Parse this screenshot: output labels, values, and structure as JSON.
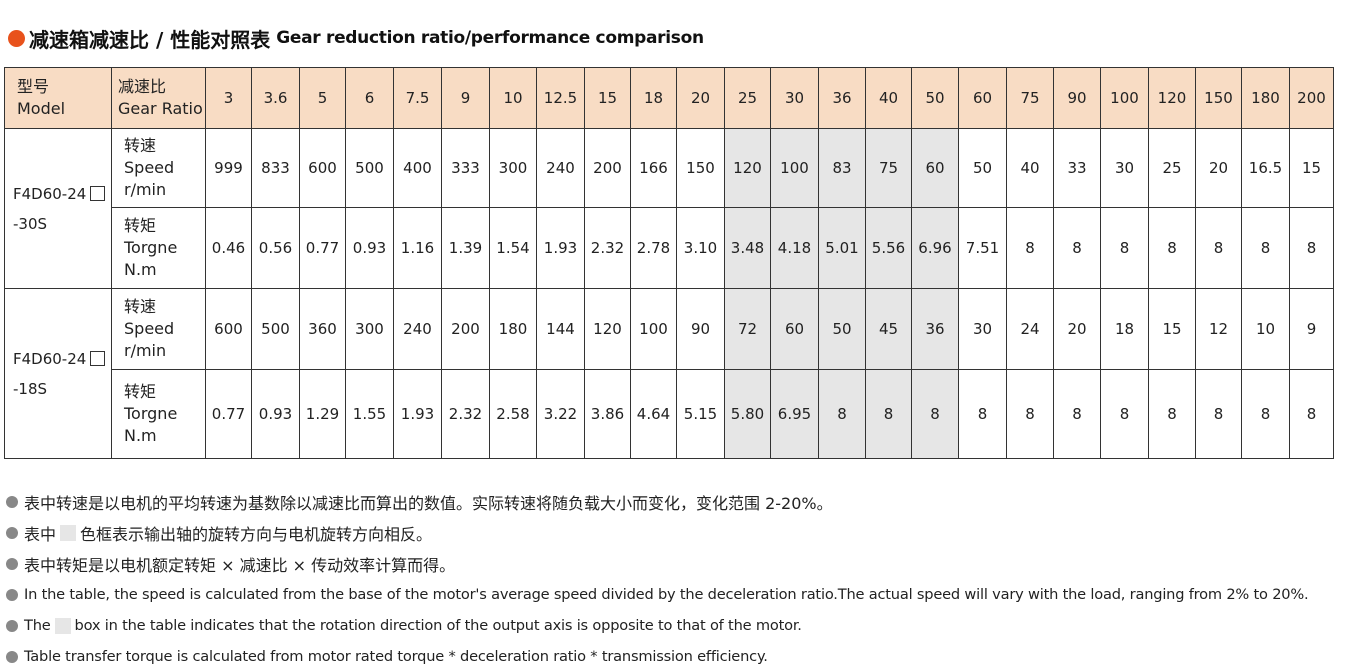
{
  "title": {
    "zh": "减速箱减速比 / 性能对照表",
    "en": "Gear reduction ratio/performance comparison",
    "accent": "#e8521c"
  },
  "table": {
    "header": {
      "model_zh": "型号",
      "model_en": "Model",
      "ratio_zh": "减速比",
      "ratio_en": "Gear Ratio",
      "ratios": [
        "3",
        "3.6",
        "5",
        "6",
        "7.5",
        "9",
        "10",
        "12.5",
        "15",
        "18",
        "20",
        "25",
        "30",
        "36",
        "40",
        "50",
        "60",
        "75",
        "90",
        "100",
        "120",
        "150",
        "180",
        "200"
      ]
    },
    "highlight_color": "#e6e6e6",
    "header_color": "#f8dcc4",
    "groups": [
      {
        "model_line1": "F4D60-24",
        "model_line2": "-30S",
        "rows": [
          {
            "zh": "转速",
            "en": "Speed",
            "unit": "r/min",
            "values": [
              "999",
              "833",
              "600",
              "500",
              "400",
              "333",
              "300",
              "240",
              "200",
              "166",
              "150",
              "120",
              "100",
              "83",
              "75",
              "60",
              "50",
              "40",
              "33",
              "30",
              "25",
              "20",
              "16.5",
              "15"
            ]
          },
          {
            "zh": "转矩",
            "en": "Torgne",
            "unit": "N.m",
            "values": [
              "0.46",
              "0.56",
              "0.77",
              "0.93",
              "1.16",
              "1.39",
              "1.54",
              "1.93",
              "2.32",
              "2.78",
              "3.10",
              "3.48",
              "4.18",
              "5.01",
              "5.56",
              "6.96",
              "7.51",
              "8",
              "8",
              "8",
              "8",
              "8",
              "8",
              "8"
            ]
          }
        ]
      },
      {
        "model_line1": "F4D60-24",
        "model_line2": "-18S",
        "rows": [
          {
            "zh": "转速",
            "en": "Speed",
            "unit": "r/min",
            "values": [
              "600",
              "500",
              "360",
              "300",
              "240",
              "200",
              "180",
              "144",
              "120",
              "100",
              "90",
              "72",
              "60",
              "50",
              "45",
              "36",
              "30",
              "24",
              "20",
              "18",
              "15",
              "12",
              "10",
              "9"
            ]
          },
          {
            "zh": "转矩",
            "en": "Torgne",
            "unit": "N.m",
            "values": [
              "0.77",
              "0.93",
              "1.29",
              "1.55",
              "1.93",
              "2.32",
              "2.58",
              "3.22",
              "3.86",
              "4.64",
              "5.15",
              "5.80",
              "6.95",
              "8",
              "8",
              "8",
              "8",
              "8",
              "8",
              "8",
              "8",
              "8",
              "8",
              "8"
            ]
          }
        ]
      }
    ]
  },
  "notes": {
    "n1": "表中转速是以电机的平均转速为基数除以减速比而算出的数值。实际转速将随负载大小而变化，变化范围 2-20%。",
    "n2_a": "表中",
    "n2_b": "色框表示输出轴的旋转方向与电机旋转方向相反。",
    "n3": "表中转矩是以电机额定转矩 × 减速比 × 传动效率计算而得。",
    "n4": "In the table, the speed is calculated from the base of the motor's average speed  divided by the deceleration ratio.The actual speed will vary with the load, ranging from 2% to 20%.",
    "n5_a": "The",
    "n5_b": "box in the table indicates that the rotation direction of the output axis is opposite to that of the motor.",
    "n6": "Table transfer torque is calculated from motor rated torque * deceleration ratio * transmission efficiency."
  }
}
